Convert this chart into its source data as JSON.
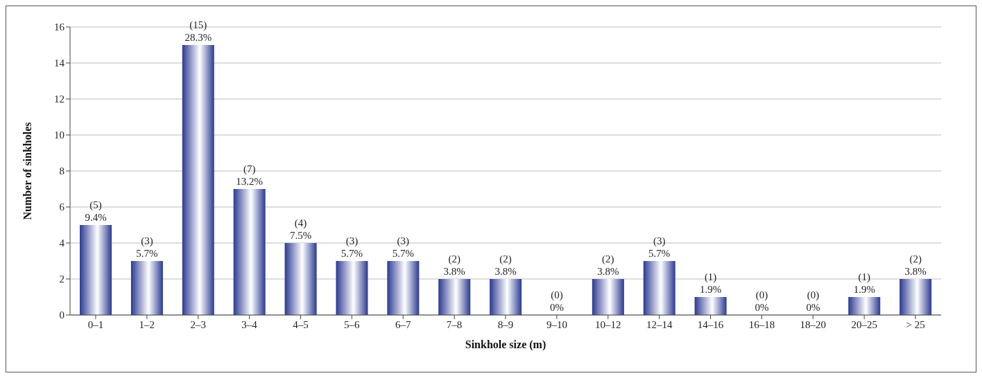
{
  "chart_data": {
    "type": "bar",
    "xlabel": "Sinkhole size (m)",
    "ylabel": "Number of sinkholes",
    "categories": [
      "0–1",
      "1–2",
      "2–3",
      "3–4",
      "4–5",
      "5–6",
      "6–7",
      "7–8",
      "8–9",
      "9–10",
      "10–12",
      "12–14",
      "14–16",
      "16–18",
      "18–20",
      "20–25",
      "> 25"
    ],
    "values": [
      5,
      3,
      15,
      7,
      4,
      3,
      3,
      2,
      2,
      0,
      2,
      3,
      1,
      0,
      0,
      1,
      2
    ],
    "value_labels": [
      "(5)\n9.4%",
      "(3)\n5.7%",
      "(15)\n28.3%",
      "(7)\n13.2%",
      "(4)\n7.5%",
      "(3)\n5.7%",
      "(3)\n5.7%",
      "(2)\n3.8%",
      "(2)\n3.8%",
      "(0)\n0%",
      "(2)\n3.8%",
      "(3)\n5.7%",
      "(1)\n1.9%",
      "(0)\n0%",
      "(0)\n0%",
      "(1)\n1.9%",
      "(2)\n3.8%"
    ],
    "color": "#2b3a92",
    "ylim": [
      0,
      16
    ],
    "yticks": [
      0,
      2,
      4,
      6,
      8,
      10,
      12,
      14,
      16
    ],
    "grid": "y"
  }
}
